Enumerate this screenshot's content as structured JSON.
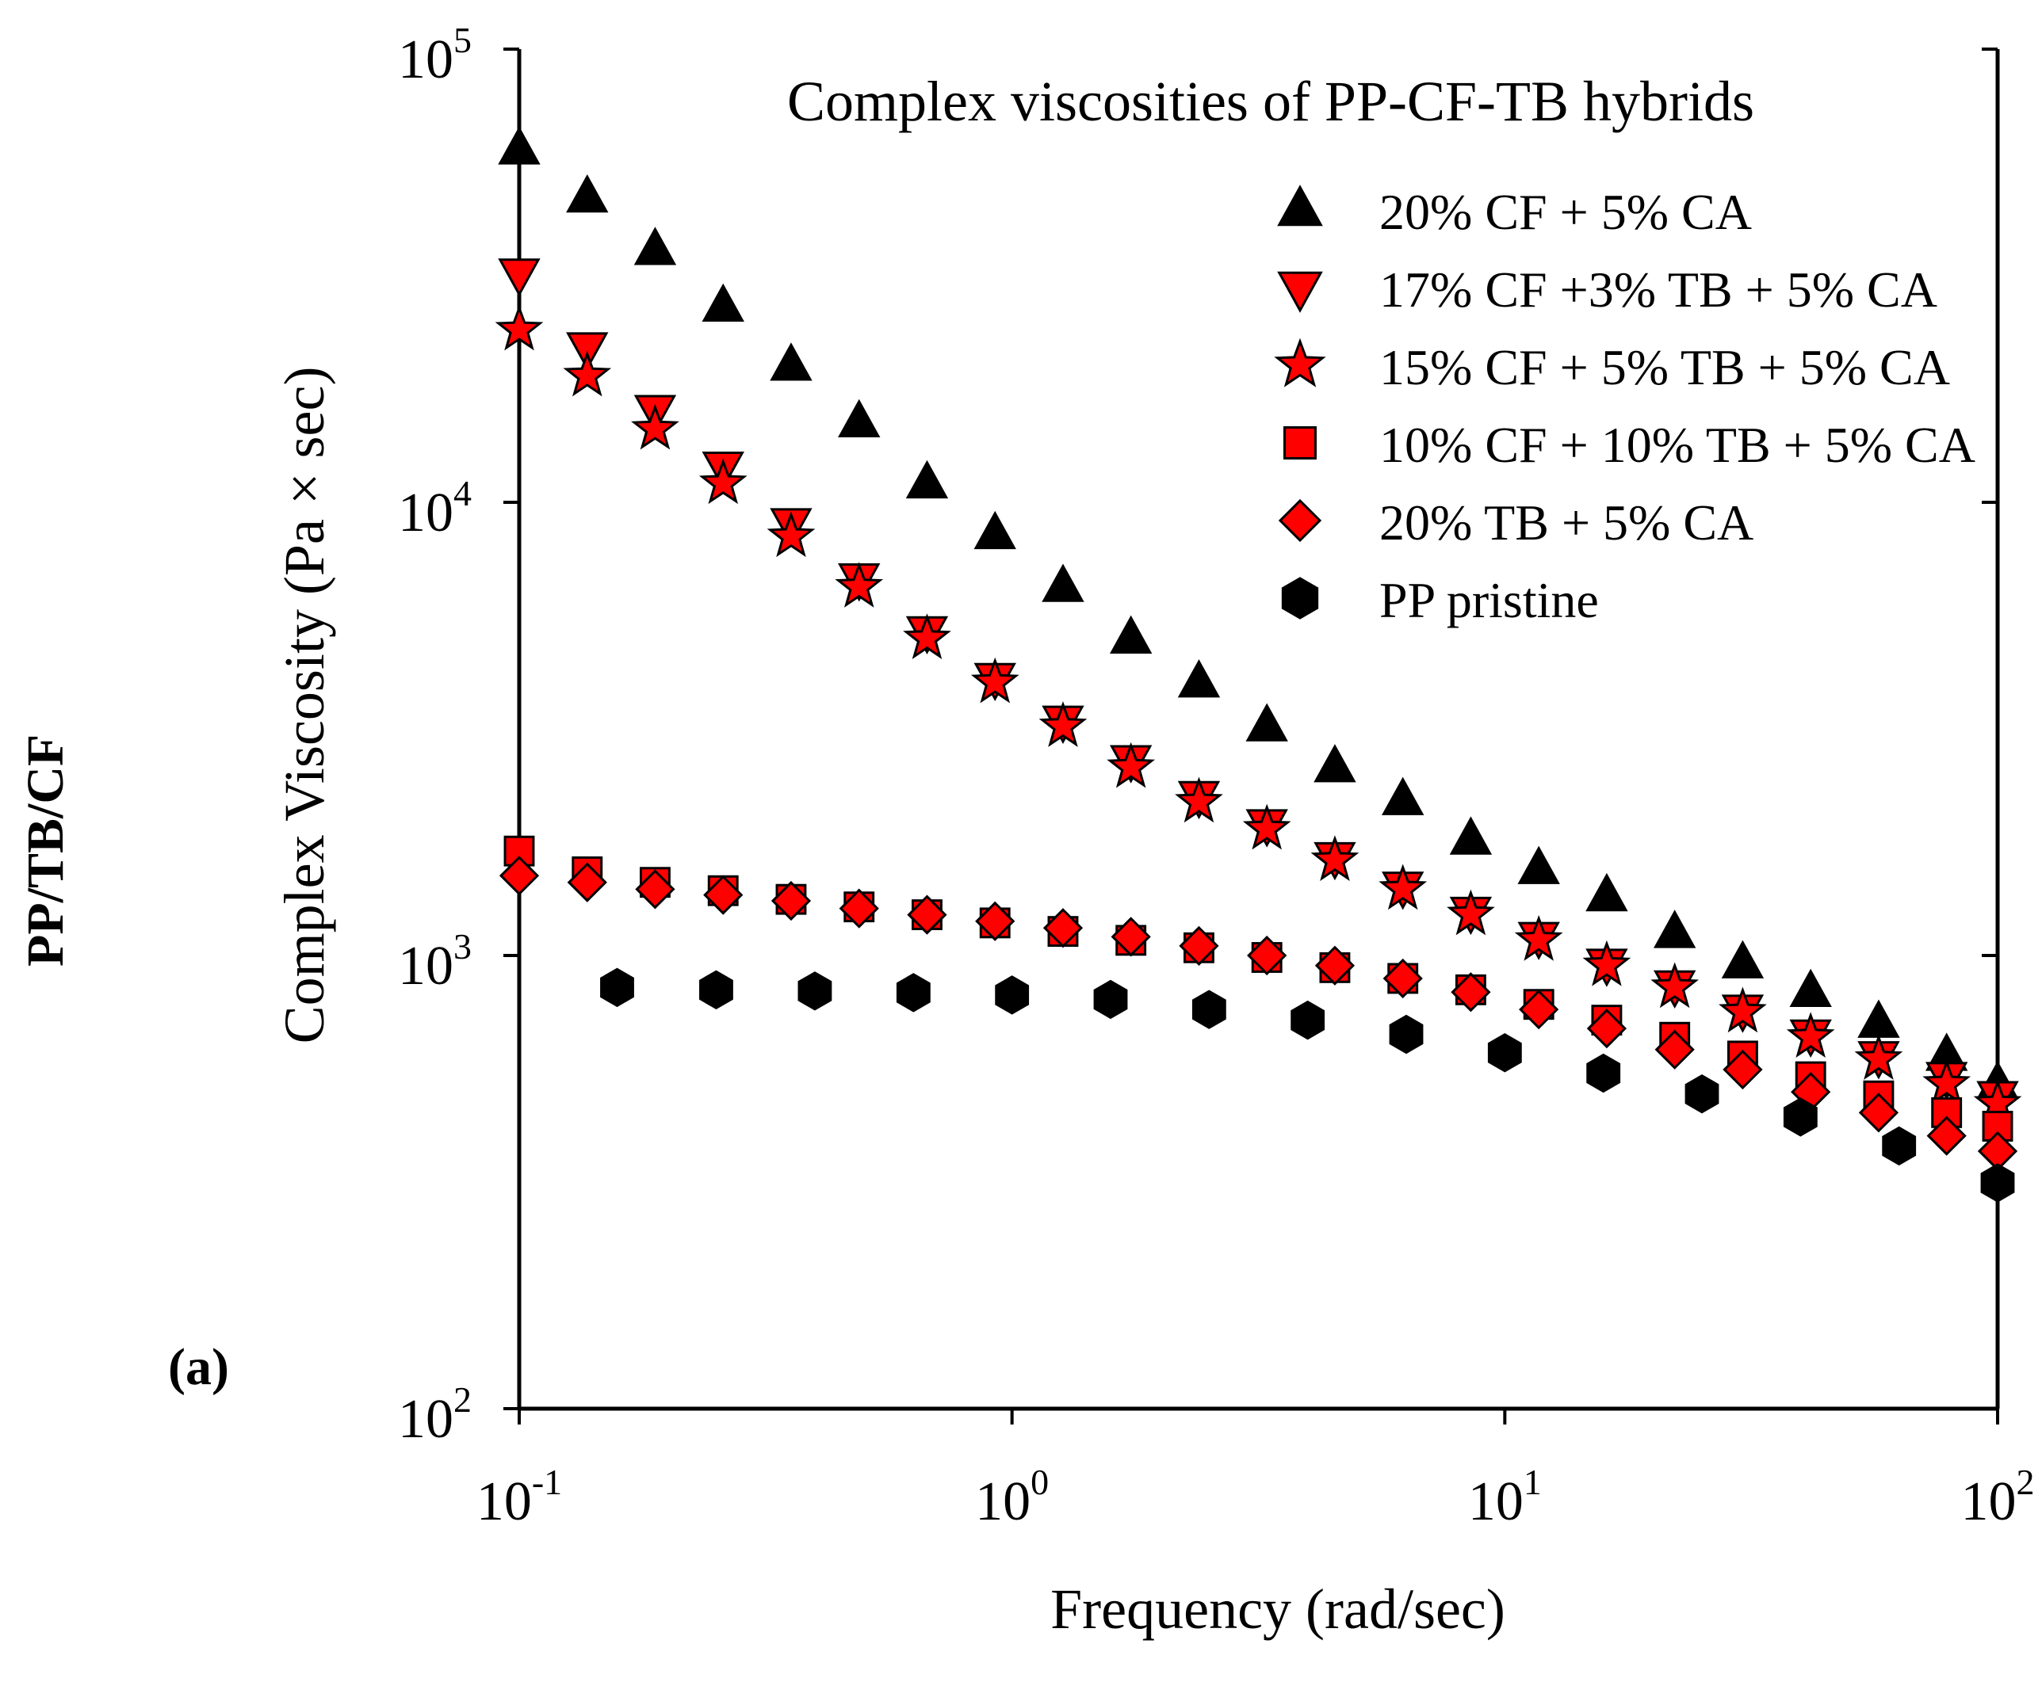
{
  "side_title": "PP/TB/CF",
  "panel_label": "(a)",
  "chart_data": {
    "type": "scatter",
    "title": "Complex viscosities of PP-CF-TB hybrids",
    "xlabel": "Frequency (rad/sec)",
    "ylabel": "Complex Viscosity (Pa × sec)",
    "xscale": "log",
    "yscale": "log",
    "xlim": [
      0.1,
      100
    ],
    "ylim": [
      100,
      100000
    ],
    "x_ticks": [
      {
        "base": "10",
        "exp": "-1",
        "value": 0.1
      },
      {
        "base": "10",
        "exp": "0",
        "value": 1
      },
      {
        "base": "10",
        "exp": "1",
        "value": 10
      },
      {
        "base": "10",
        "exp": "2",
        "value": 100
      }
    ],
    "y_ticks": [
      {
        "base": "10",
        "exp": "2",
        "value": 100
      },
      {
        "base": "10",
        "exp": "3",
        "value": 1000
      },
      {
        "base": "10",
        "exp": "4",
        "value": 10000
      },
      {
        "base": "10",
        "exp": "5",
        "value": 100000
      }
    ],
    "grid": false,
    "legend_position": "top-right",
    "series": [
      {
        "name": "20% CF + 5% CA",
        "marker": "triangle-up",
        "color": "#000000",
        "x": [
          0.1,
          0.1374,
          0.1887,
          0.2593,
          0.3562,
          0.4894,
          0.6723,
          0.9237,
          1.269,
          1.743,
          2.395,
          3.29,
          4.52,
          6.21,
          8.53,
          11.72,
          16.1,
          22.12,
          30.39,
          41.75,
          57.36,
          78.8,
          100
        ],
        "y": [
          60000,
          47000,
          36000,
          27000,
          20000,
          15000,
          11000,
          8500,
          6500,
          5000,
          4000,
          3200,
          2600,
          2200,
          1800,
          1550,
          1350,
          1120,
          960,
          830,
          710,
          600,
          520
        ]
      },
      {
        "name": "17% CF +3% TB + 5% CA",
        "marker": "triangle-down",
        "color": "#ff0000",
        "x": [
          0.1,
          0.1374,
          0.1887,
          0.2593,
          0.3562,
          0.4894,
          0.6723,
          0.9237,
          1.269,
          1.743,
          2.395,
          3.29,
          4.52,
          6.21,
          8.53,
          11.72,
          16.1,
          22.12,
          30.39,
          41.75,
          57.36,
          78.8,
          100
        ],
        "y": [
          32000,
          22000,
          16000,
          12000,
          9000,
          6800,
          5200,
          4100,
          3300,
          2700,
          2250,
          1950,
          1650,
          1420,
          1250,
          1100,
          960,
          860,
          760,
          670,
          600,
          540,
          490
        ]
      },
      {
        "name": "15% CF + 5% TB + 5% CA",
        "marker": "star",
        "color": "#ff0000",
        "x": [
          0.1,
          0.1374,
          0.1887,
          0.2593,
          0.3562,
          0.4894,
          0.6723,
          0.9237,
          1.269,
          1.743,
          2.395,
          3.29,
          4.52,
          6.21,
          8.53,
          11.72,
          16.1,
          22.12,
          30.39,
          41.75,
          57.36,
          78.8,
          100
        ],
        "y": [
          24000,
          19000,
          14500,
          11000,
          8400,
          6500,
          5000,
          4000,
          3200,
          2600,
          2180,
          1900,
          1620,
          1400,
          1230,
          1080,
          950,
          850,
          750,
          660,
          590,
          520,
          470
        ]
      },
      {
        "name": "10% CF + 10% TB + 5% CA",
        "marker": "square",
        "color": "#ff0000",
        "x": [
          0.1,
          0.1374,
          0.1887,
          0.2593,
          0.3562,
          0.4894,
          0.6723,
          0.9237,
          1.269,
          1.743,
          2.395,
          3.29,
          4.52,
          6.21,
          8.53,
          11.72,
          16.1,
          22.12,
          30.39,
          41.75,
          57.36,
          78.8,
          100
        ],
        "y": [
          1700,
          1530,
          1450,
          1390,
          1330,
          1280,
          1230,
          1180,
          1130,
          1080,
          1040,
          990,
          940,
          890,
          840,
          780,
          720,
          660,
          600,
          540,
          490,
          450,
          420
        ]
      },
      {
        "name": "20% TB + 5% CA",
        "marker": "diamond",
        "color": "#ff0000",
        "x": [
          0.1,
          0.1374,
          0.1887,
          0.2593,
          0.3562,
          0.4894,
          0.6723,
          0.9237,
          1.269,
          1.743,
          2.395,
          3.29,
          4.52,
          6.21,
          8.53,
          11.72,
          16.1,
          22.12,
          30.39,
          41.75,
          57.36,
          78.8,
          100
        ],
        "y": [
          1500,
          1450,
          1400,
          1360,
          1320,
          1270,
          1230,
          1190,
          1150,
          1100,
          1050,
          1000,
          950,
          890,
          830,
          760,
          690,
          620,
          560,
          500,
          450,
          400,
          370
        ]
      },
      {
        "name": "PP pristine",
        "marker": "hexagon",
        "color": "#000000",
        "x": [
          0.158,
          0.251,
          0.398,
          0.631,
          1.0,
          1.585,
          2.512,
          3.981,
          6.31,
          10.0,
          15.85,
          25.12,
          39.81,
          63.1,
          100
        ],
        "y": [
          850,
          840,
          835,
          828,
          818,
          800,
          760,
          720,
          670,
          610,
          550,
          495,
          440,
          380,
          315
        ]
      }
    ]
  }
}
